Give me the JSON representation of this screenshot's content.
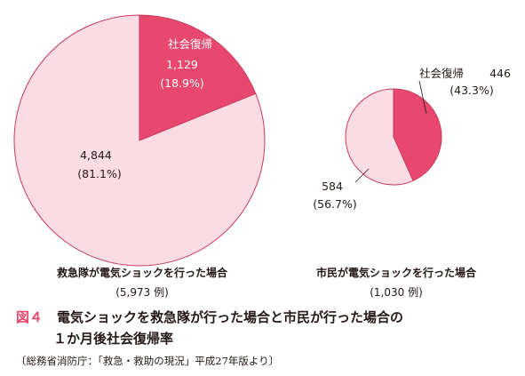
{
  "chart_data": [
    {
      "type": "pie",
      "caption": "救急隊が電気ショックを行った場合",
      "total_label": "(5,973 例)",
      "colors": [
        "#e8476e",
        "#fcdce4"
      ],
      "slices": [
        {
          "label": "社会復帰",
          "value": 1129,
          "value_text": "1,129",
          "percent_text": "(18.9%)"
        },
        {
          "label": "",
          "value": 4844,
          "value_text": "4,844",
          "percent_text": "(81.1%)"
        }
      ]
    },
    {
      "type": "pie",
      "caption": "市民が電気ショックを行った場合",
      "total_label": "(1,030 例)",
      "colors": [
        "#e8476e",
        "#fcdce4"
      ],
      "slices": [
        {
          "label": "社会復帰",
          "value": 446,
          "value_text": "446",
          "percent_text": "(43.3%)"
        },
        {
          "label": "",
          "value": 584,
          "value_text": "584",
          "percent_text": "(56.7%)"
        }
      ]
    }
  ],
  "figure": {
    "number": "図４",
    "title_line1": "電気ショックを救急隊が行った場合と市民が行った場合の",
    "title_line2": "１か月後社会復帰率"
  },
  "source": "〔総務省消防庁：「救急・救助の現況」平成27年版より〕"
}
